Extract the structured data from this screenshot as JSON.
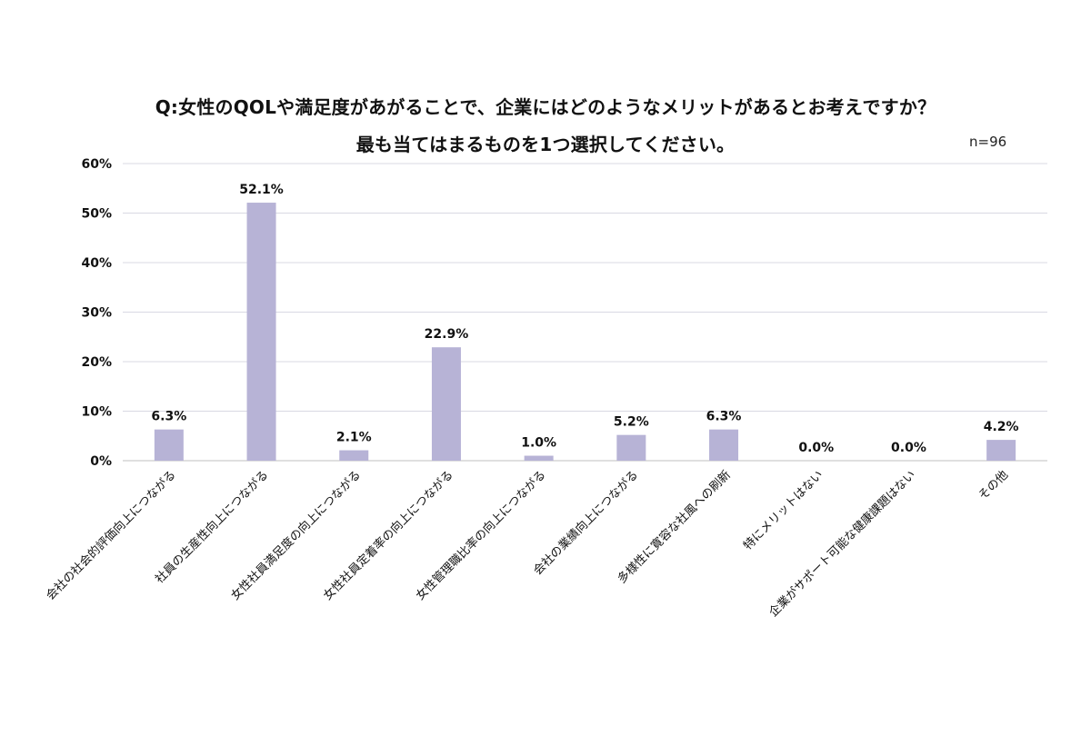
{
  "title_line1": "Q:女性のQOLや満足度があがることで、企業にはどのようなメリットがあるとお考えですか？",
  "title_line2": "最も当てはまるものを1つ選択してください。",
  "sample_note": "n=96",
  "colors": {
    "bar": "#b7b3d6",
    "grid": "#d9d9e3",
    "axis": "#bfbfbf"
  },
  "chart_data": {
    "type": "bar",
    "categories": [
      "会社の社会的評価向上につながる",
      "社員の生産性向上につながる",
      "女性社員満足度の向上につながる",
      "女性社員定着率の向上につながる",
      "女性管理職比率の向上につながる",
      "会社の業績向上につながる",
      "多様性に寛容な社風への刷新",
      "特にメリットはない",
      "企業がサポート可能な健康課題はない",
      "その他"
    ],
    "values": [
      6.3,
      52.1,
      2.1,
      22.9,
      1.0,
      5.2,
      6.3,
      0.0,
      0.0,
      4.2
    ],
    "value_labels": [
      "6.3%",
      "52.1%",
      "2.1%",
      "22.9%",
      "1.0%",
      "5.2%",
      "6.3%",
      "0.0%",
      "0.0%",
      "4.2%"
    ],
    "ylim": [
      0,
      60
    ],
    "yticks": [
      "0%",
      "10%",
      "20%",
      "30%",
      "40%",
      "50%",
      "60%"
    ],
    "grid": true,
    "legend": "none"
  }
}
